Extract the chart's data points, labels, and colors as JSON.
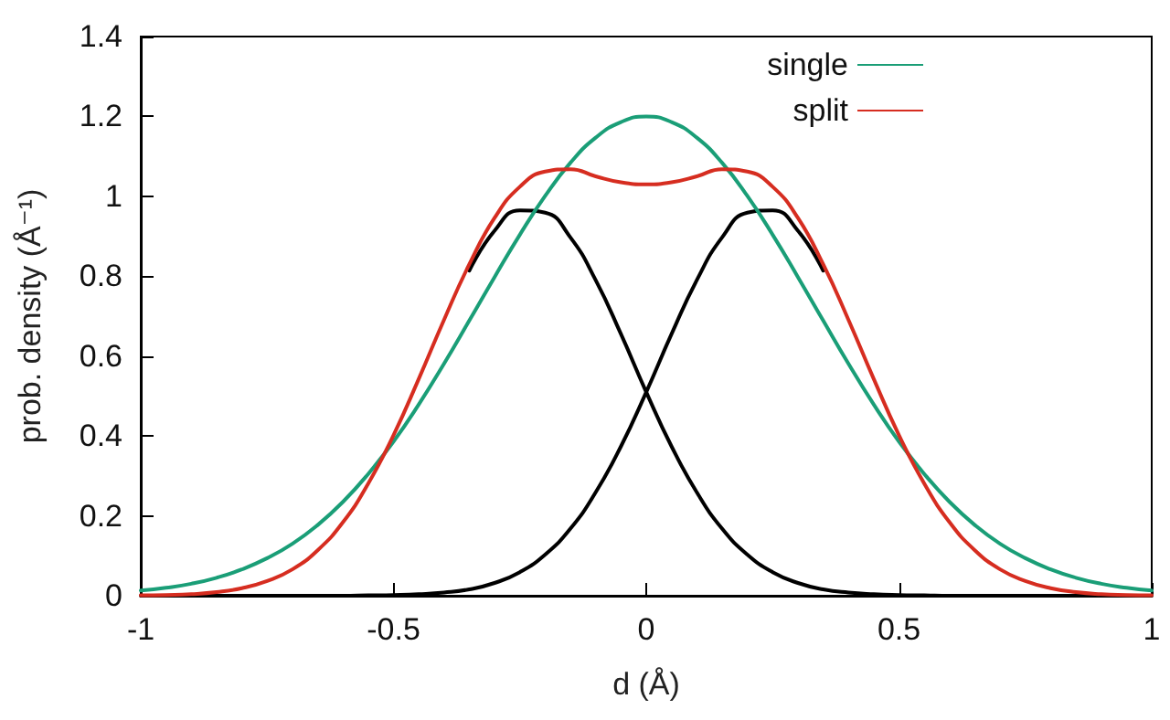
{
  "chart_data": {
    "type": "line",
    "xlabel": "d (Å)",
    "ylabel": "prob. density (Å⁻¹)",
    "x": [
      -1,
      -0.95,
      -0.9,
      -0.85,
      -0.8,
      -0.75,
      -0.7,
      -0.65,
      -0.6,
      -0.55,
      -0.5,
      -0.45,
      -0.4,
      -0.35,
      -0.3,
      -0.25,
      -0.2,
      -0.15,
      -0.1,
      -0.05,
      0,
      0.05,
      0.1,
      0.15,
      0.2,
      0.25,
      0.3,
      0.35,
      0.4,
      0.45,
      0.5,
      0.55,
      0.6,
      0.65,
      0.7,
      0.75,
      0.8,
      0.85,
      0.9,
      0.95,
      1
    ],
    "series": [
      {
        "name": "single",
        "color": "#1a9e77",
        "values": [
          0.013,
          0.02,
          0.03,
          0.045,
          0.066,
          0.094,
          0.13,
          0.177,
          0.235,
          0.305,
          0.386,
          0.479,
          0.581,
          0.689,
          0.798,
          0.904,
          1.001,
          1.084,
          1.147,
          1.186,
          1.2,
          1.186,
          1.147,
          1.084,
          1.001,
          0.904,
          0.798,
          0.689,
          0.581,
          0.479,
          0.386,
          0.305,
          0.235,
          0.177,
          0.13,
          0.094,
          0.066,
          0.045,
          0.03,
          0.02,
          0.013
        ]
      },
      {
        "name": "split",
        "color": "#d62d20",
        "values": [
          0.001,
          0.002,
          0.004,
          0.009,
          0.019,
          0.037,
          0.066,
          0.114,
          0.184,
          0.281,
          0.402,
          0.543,
          0.691,
          0.83,
          0.946,
          1.024,
          1.062,
          1.068,
          1.05,
          1.035,
          1.03,
          1.035,
          1.05,
          1.068,
          1.062,
          1.024,
          0.946,
          0.83,
          0.691,
          0.543,
          0.402,
          0.281,
          0.184,
          0.114,
          0.066,
          0.037,
          0.019,
          0.009,
          0.004,
          0.002,
          0.001
        ]
      },
      {
        "color": "#000000",
        "values": [
          null,
          null,
          null,
          null,
          null,
          null,
          null,
          null,
          null,
          null,
          null,
          null,
          null,
          0.814,
          0.914,
          0.965,
          0.959,
          0.897,
          0.79,
          0.655,
          0.51,
          0.374,
          0.259,
          0.168,
          0.103,
          0.059,
          0.032,
          0.016,
          0.008,
          0.004,
          0.002,
          0.001,
          0,
          0,
          0,
          0,
          0,
          0,
          0,
          0,
          0
        ]
      },
      {
        "color": "#000000",
        "values": [
          0,
          0,
          0,
          0,
          0,
          0,
          0,
          0,
          0,
          0.001,
          0.002,
          0.004,
          0.008,
          0.016,
          0.032,
          0.059,
          0.103,
          0.168,
          0.259,
          0.374,
          0.51,
          0.655,
          0.79,
          0.897,
          0.959,
          0.965,
          0.914,
          0.814,
          null,
          null,
          null,
          null,
          null,
          null,
          null,
          null,
          null,
          null,
          null,
          null,
          null
        ]
      }
    ],
    "xlim": [
      -1,
      1
    ],
    "xticks": [
      -1,
      -0.5,
      0,
      0.5,
      1
    ],
    "ylim": [
      0,
      1.4
    ],
    "yticks": [
      0,
      0.2,
      0.4,
      0.6,
      0.8,
      1,
      1.2,
      1.4
    ],
    "grid": false,
    "legend": "top right",
    "marker": "none",
    "line_style": "solid"
  }
}
